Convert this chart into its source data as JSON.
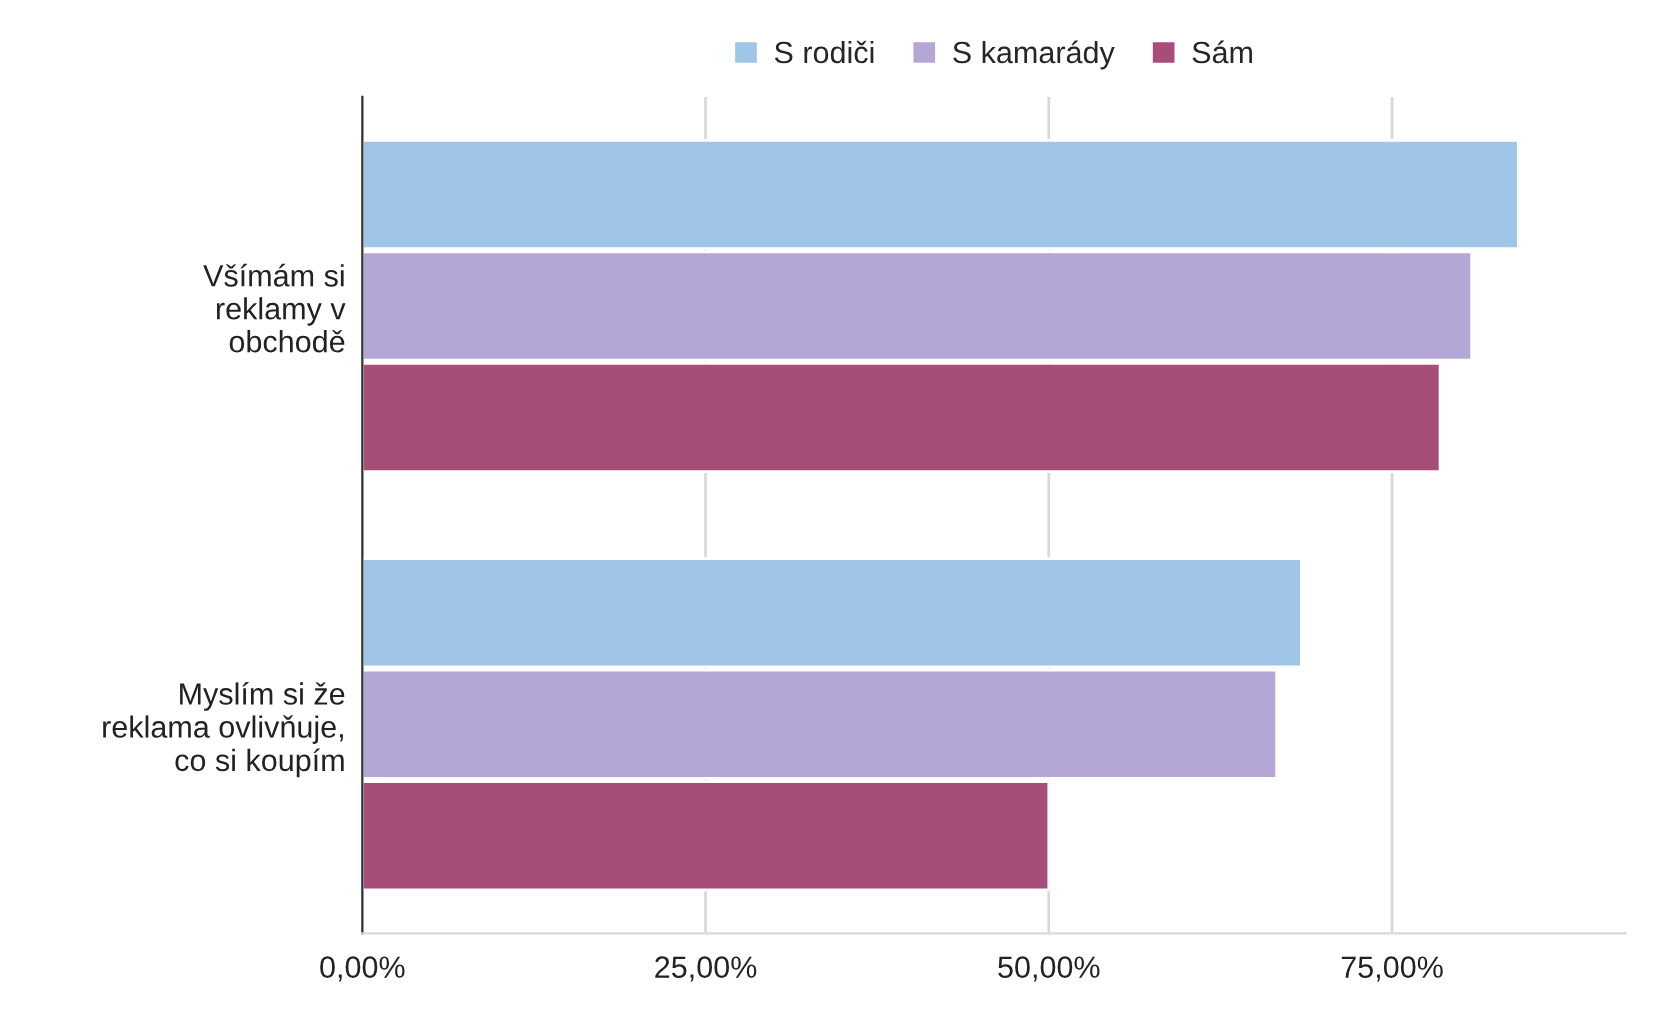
{
  "chart_data": {
    "type": "bar",
    "orientation": "horizontal",
    "categories": [
      "Všímám si\nreklamy v\nobchodě",
      "Myslím si že\nreklama ovlivňuje,\nco si koupím"
    ],
    "series": [
      {
        "name": "S rodiči",
        "color": "#9fc5e8",
        "values": [
          84.2,
          68.4
        ]
      },
      {
        "name": "S kamarády",
        "color": "#b4a7d6",
        "values": [
          80.8,
          66.6
        ]
      },
      {
        "name": "Sám",
        "color": "#a64d79",
        "values": [
          78.5,
          50.0
        ]
      }
    ],
    "xlim": [
      0,
      92
    ],
    "xticks": [
      {
        "value": 0,
        "label": "0,00%"
      },
      {
        "value": 25,
        "label": "25,00%"
      },
      {
        "value": 50,
        "label": "50,00%"
      },
      {
        "value": 75,
        "label": "75,00%"
      }
    ],
    "grid": "x",
    "legend": "top"
  }
}
